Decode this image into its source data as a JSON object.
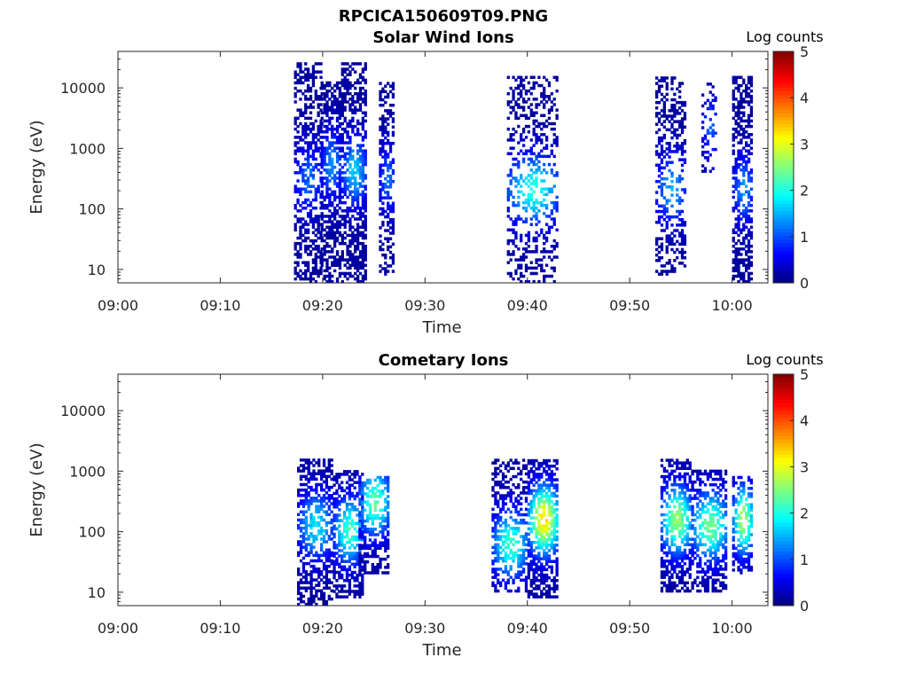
{
  "figure": {
    "title": "RPCICA150609T09.PNG"
  },
  "chart_data": [
    {
      "type": "heatmap",
      "title": "Solar Wind Ions",
      "xlabel": "Time",
      "ylabel": "Energy (eV)",
      "x_ticks": [
        "09:00",
        "09:10",
        "09:20",
        "09:30",
        "09:40",
        "09:50",
        "10:00"
      ],
      "x_range_minutes": [
        0,
        63.5
      ],
      "y_ticks": [
        "10",
        "100",
        "1000",
        "10000"
      ],
      "y_scale": "log",
      "y_range": [
        6,
        40000
      ],
      "colorbar": {
        "label": "Log counts",
        "ticks": [
          "0",
          "1",
          "2",
          "3",
          "4",
          "5"
        ],
        "range": [
          0,
          5
        ]
      },
      "clusters": [
        {
          "t_start": 17.2,
          "t_end": 19.8,
          "e_min": 6,
          "e_max": 25000,
          "peak": 1.0,
          "peak_e": 300,
          "density": 0.5
        },
        {
          "t_start": 19.8,
          "t_end": 21.8,
          "e_min": 6,
          "e_max": 12000,
          "peak": 1.2,
          "peak_e": 500,
          "density": 0.6
        },
        {
          "t_start": 21.8,
          "t_end": 24.2,
          "e_min": 6,
          "e_max": 25000,
          "peak": 1.5,
          "peak_e": 400,
          "density": 0.6
        },
        {
          "t_start": 25.5,
          "t_end": 27.0,
          "e_min": 8,
          "e_max": 12000,
          "peak": 1.0,
          "peak_e": 300,
          "density": 0.45
        },
        {
          "t_start": 38.0,
          "t_end": 43.0,
          "e_min": 6,
          "e_max": 15000,
          "peak": 1.9,
          "peak_e": 200,
          "density": 0.35
        },
        {
          "t_start": 52.5,
          "t_end": 55.5,
          "e_min": 8,
          "e_max": 15000,
          "peak": 1.3,
          "peak_e": 200,
          "density": 0.4
        },
        {
          "t_start": 57.0,
          "t_end": 58.5,
          "e_min": 400,
          "e_max": 12000,
          "peak": 0.9,
          "peak_e": 2000,
          "density": 0.3
        },
        {
          "t_start": 60.0,
          "t_end": 62.0,
          "e_min": 6,
          "e_max": 15000,
          "peak": 1.2,
          "peak_e": 200,
          "density": 0.55
        }
      ]
    },
    {
      "type": "heatmap",
      "title": "Cometary Ions",
      "xlabel": "Time",
      "ylabel": "Energy (eV)",
      "x_ticks": [
        "09:00",
        "09:10",
        "09:20",
        "09:30",
        "09:40",
        "09:50",
        "10:00"
      ],
      "x_range_minutes": [
        0,
        63.5
      ],
      "y_ticks": [
        "10",
        "100",
        "1000",
        "10000"
      ],
      "y_scale": "log",
      "y_range": [
        6,
        40000
      ],
      "colorbar": {
        "label": "Log counts",
        "ticks": [
          "0",
          "1",
          "2",
          "3",
          "4",
          "5"
        ],
        "range": [
          0,
          5
        ]
      },
      "clusters": [
        {
          "t_start": 17.5,
          "t_end": 21.0,
          "e_min": 6,
          "e_max": 1500,
          "peak": 1.6,
          "peak_e": 120,
          "density": 0.55
        },
        {
          "t_start": 21.0,
          "t_end": 24.0,
          "e_min": 8,
          "e_max": 1000,
          "peak": 2.0,
          "peak_e": 100,
          "density": 0.55
        },
        {
          "t_start": 23.5,
          "t_end": 26.5,
          "e_min": 20,
          "e_max": 800,
          "peak": 2.2,
          "peak_e": 300,
          "density": 0.6
        },
        {
          "t_start": 36.5,
          "t_end": 40.0,
          "e_min": 10,
          "e_max": 1500,
          "peak": 2.0,
          "peak_e": 60,
          "density": 0.45
        },
        {
          "t_start": 40.0,
          "t_end": 43.0,
          "e_min": 8,
          "e_max": 1500,
          "peak": 3.1,
          "peak_e": 150,
          "density": 0.6
        },
        {
          "t_start": 53.0,
          "t_end": 56.0,
          "e_min": 10,
          "e_max": 1500,
          "peak": 2.5,
          "peak_e": 150,
          "density": 0.6
        },
        {
          "t_start": 56.0,
          "t_end": 59.5,
          "e_min": 10,
          "e_max": 1000,
          "peak": 2.3,
          "peak_e": 120,
          "density": 0.55
        },
        {
          "t_start": 60.0,
          "t_end": 62.0,
          "e_min": 20,
          "e_max": 800,
          "peak": 2.6,
          "peak_e": 150,
          "density": 0.6
        }
      ]
    }
  ]
}
